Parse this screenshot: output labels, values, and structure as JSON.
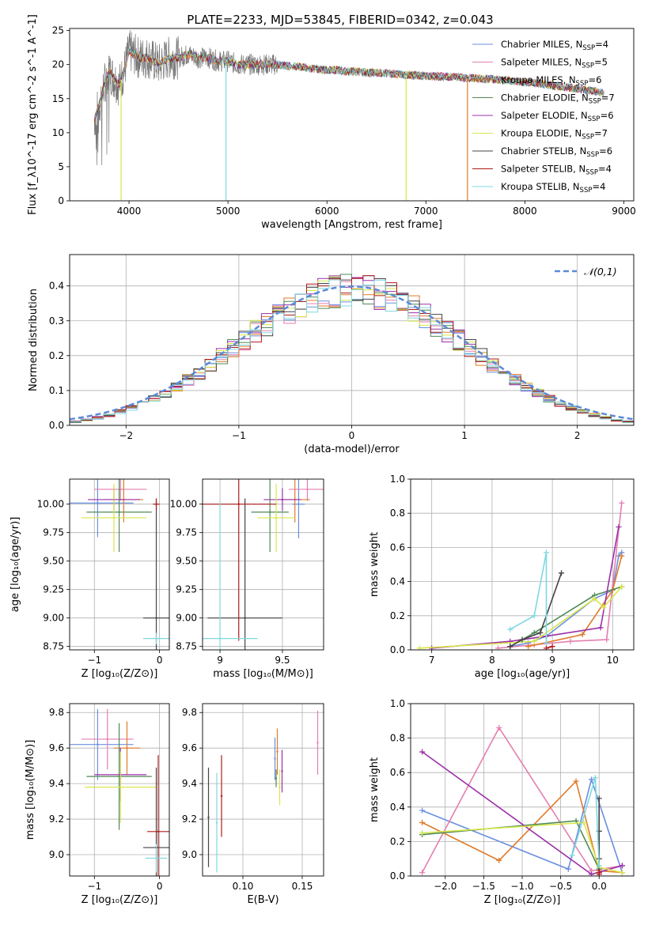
{
  "figure_title": "PLATE=2233, MJD=53845, FIBERID=0342, z=0.043",
  "series_colors": [
    "#6b8fe0",
    "#e37fb0",
    "#e07b2a",
    "#4f8a57",
    "#9b30a8",
    "#d9e64a",
    "#444444",
    "#b01a1a",
    "#7fd8e0"
  ],
  "series_names": [
    "Chabrier MILES",
    "Salpeter MILES",
    "Kroupa MILES",
    "Chabrier ELODIE",
    "Salpeter ELODIE",
    "Kroupa ELODIE",
    "Chabrier STELIB",
    "Salpeter STELIB",
    "Kroupa STELIB"
  ],
  "nssp": [
    "4",
    "5",
    "6",
    "7",
    "6",
    "7",
    "6",
    "4",
    "4"
  ],
  "chart_data": [
    {
      "id": "spectrum",
      "type": "line",
      "xlabel": "wavelength [Angstrom, rest frame]",
      "ylabel": "Flux [f_λ10^-17 erg cm^-2 s^-1 A^-1]",
      "xlim": [
        3400,
        9100
      ],
      "ylim": [
        0,
        25.3
      ],
      "xticks": [
        4000,
        5000,
        6000,
        7000,
        8000,
        9000
      ],
      "yticks": [
        0,
        5,
        10,
        15,
        20,
        25
      ],
      "legend_position": "upper right",
      "data_series": {
        "name": "data",
        "color": "#777777"
      },
      "model_points": {
        "x": [
          3650,
          3700,
          3750,
          3800,
          3850,
          3900,
          3950,
          4000,
          4100,
          4200,
          4300,
          4400,
          4500,
          4600,
          4700,
          4800,
          4900,
          5000,
          5100,
          5200,
          5300,
          5400,
          5500,
          5600,
          5700,
          5800,
          5900,
          6000,
          6100,
          6200,
          6300,
          6400,
          6500,
          6600,
          6700,
          6800,
          6900,
          7000,
          7100,
          7200,
          7300,
          7400,
          7500,
          7600,
          7700,
          7800,
          7900,
          8000,
          8100,
          8200,
          8300,
          8400,
          8500,
          8600,
          8700,
          8800
        ],
        "y": [
          12,
          14,
          17,
          19,
          18,
          17,
          19,
          22,
          21,
          21,
          20,
          21,
          21,
          21.5,
          21,
          21,
          20.5,
          20.5,
          20,
          20,
          20,
          20,
          20,
          19.8,
          19.7,
          19.5,
          19.3,
          19.2,
          19.2,
          19,
          19,
          18.8,
          18.8,
          18.7,
          18.6,
          18.5,
          18.4,
          18.3,
          18.3,
          18.2,
          18.2,
          18.0,
          18.0,
          17.9,
          17.8,
          17.7,
          17.6,
          17.4,
          17.3,
          17.1,
          16.9,
          16.7,
          16.5,
          16.3,
          16.1,
          15.8
        ]
      },
      "dropouts": [
        {
          "x": 3920,
          "series": 5
        },
        {
          "x": 4980,
          "series": 8
        },
        {
          "x": 6800,
          "series": 5
        },
        {
          "x": 7420,
          "series": 2
        }
      ]
    },
    {
      "id": "residual-histogram",
      "type": "line",
      "xlabel": "(data-model)/error",
      "ylabel": "Normed distribution",
      "xlim": [
        -2.5,
        2.5
      ],
      "ylim": [
        0,
        0.49
      ],
      "xticks": [
        -2,
        -1,
        0,
        1,
        2
      ],
      "yticks": [
        0.0,
        0.1,
        0.2,
        0.3,
        0.4
      ],
      "legend": "𝒩(0,1)",
      "legend_position": "upper right",
      "normal_curve": {
        "mu": 0,
        "sigma": 1,
        "color": "#5b8bd6"
      },
      "bin_width": 0.1
    },
    {
      "id": "age-vs-Z",
      "type": "scatter",
      "xlabel": "Z [log₁₀(Z/Z⊙)]",
      "ylabel": "age  [log₁₀(age/yr)]",
      "xlim": [
        -1.38,
        0.15
      ],
      "ylim": [
        8.72,
        10.22
      ],
      "xticks": [
        -1,
        0
      ],
      "yticks": [
        8.75,
        9.0,
        9.25,
        9.5,
        9.75,
        10.0
      ],
      "points": [
        {
          "s": 0,
          "x": -0.95,
          "y": 10.01,
          "xe": 0.55,
          "ye": 0.3
        },
        {
          "s": 1,
          "x": -0.6,
          "y": 10.13,
          "xe": 0.4,
          "ye": 0.1
        },
        {
          "s": 2,
          "x": -0.55,
          "y": 10.04,
          "xe": 0.3,
          "ye": 0.2
        },
        {
          "s": 3,
          "x": -0.62,
          "y": 9.93,
          "xe": 0.5,
          "ye": 0.35
        },
        {
          "s": 4,
          "x": -0.7,
          "y": 10.04,
          "xe": 0.4,
          "ye": 0.1
        },
        {
          "s": 5,
          "x": -0.7,
          "y": 9.88,
          "xe": 0.5,
          "ye": 0.3
        },
        {
          "s": 6,
          "x": -0.05,
          "y": 9.0,
          "xe": 0.2,
          "ye": 1.05
        },
        {
          "s": 7,
          "x": -0.05,
          "y": 10.0,
          "xe": 0.05,
          "ye": 0.05
        },
        {
          "s": 8,
          "x": -0.05,
          "y": 8.82,
          "xe": 0.2,
          "ye": 0.05
        }
      ]
    },
    {
      "id": "age-vs-mass",
      "type": "scatter",
      "xlabel": "mass [log₁₀(M/M⊙)]",
      "ylabel": "",
      "xlim": [
        8.86,
        9.83
      ],
      "ylim": [
        8.72,
        10.22
      ],
      "xticks": [
        9.0,
        9.5
      ],
      "yticks": [
        8.75,
        9.0,
        9.25,
        9.5,
        9.75,
        10.0
      ],
      "points": [
        {
          "s": 0,
          "x": 9.63,
          "y": 10.0,
          "xe": 0.05,
          "ye": 0.3
        },
        {
          "s": 1,
          "x": 9.7,
          "y": 10.13,
          "xe": 0.15,
          "ye": 0.1
        },
        {
          "s": 2,
          "x": 9.6,
          "y": 10.04,
          "xe": 0.12,
          "ye": 0.2
        },
        {
          "s": 3,
          "x": 9.4,
          "y": 9.93,
          "xe": 0.15,
          "ye": 0.35
        },
        {
          "s": 4,
          "x": 9.5,
          "y": 10.04,
          "xe": 0.15,
          "ye": 0.1
        },
        {
          "s": 5,
          "x": 9.45,
          "y": 9.88,
          "xe": 0.15,
          "ye": 0.3
        },
        {
          "s": 6,
          "x": 9.2,
          "y": 9.0,
          "xe": 0.3,
          "ye": 1.05
        },
        {
          "s": 7,
          "x": 9.15,
          "y": 10.0,
          "xe": 0.3,
          "ye": 1.2
        },
        {
          "s": 8,
          "x": 9.0,
          "y": 8.82,
          "xe": 0.3,
          "ye": 1.2
        }
      ]
    },
    {
      "id": "massweight-vs-age",
      "type": "line",
      "xlabel": "age  [log₁₀(age/yr)]",
      "ylabel": "mass weight",
      "xlim": [
        6.65,
        10.35
      ],
      "ylim": [
        0,
        1.0
      ],
      "xticks": [
        7,
        8,
        9,
        10
      ],
      "yticks": [
        0.0,
        0.2,
        0.4,
        0.6,
        0.8,
        1.0
      ],
      "series": [
        {
          "s": 0,
          "x": [
            8.3,
            8.6,
            8.9,
            9.7,
            10.0,
            10.1,
            10.15
          ],
          "y": [
            0.02,
            0.04,
            0.08,
            0.3,
            0.35,
            0.55,
            0.57
          ]
        },
        {
          "s": 1,
          "x": [
            8.1,
            8.7,
            9.3,
            9.9,
            10.15
          ],
          "y": [
            0.01,
            0.03,
            0.05,
            0.06,
            0.86
          ]
        },
        {
          "s": 2,
          "x": [
            8.6,
            9.5,
            10.0,
            10.15
          ],
          "y": [
            0.02,
            0.09,
            0.35,
            0.55
          ]
        },
        {
          "s": 3,
          "x": [
            8.3,
            8.7,
            9.7,
            10.15
          ],
          "y": [
            0.02,
            0.1,
            0.32,
            0.37
          ]
        },
        {
          "s": 4,
          "x": [
            7.0,
            8.3,
            8.9,
            9.8,
            10.1
          ],
          "y": [
            0.01,
            0.05,
            0.08,
            0.13,
            0.72
          ]
        },
        {
          "s": 5,
          "x": [
            6.8,
            8.7,
            9.7,
            9.85,
            10.15
          ],
          "y": [
            0.01,
            0.05,
            0.3,
            0.25,
            0.37
          ]
        },
        {
          "s": 6,
          "x": [
            8.3,
            8.5,
            8.8,
            9.15
          ],
          "y": [
            0.02,
            0.06,
            0.1,
            0.45
          ]
        },
        {
          "s": 7,
          "x": [
            8.9,
            9.0
          ],
          "y": [
            0.01,
            0.02
          ]
        },
        {
          "s": 8,
          "x": [
            8.3,
            8.7,
            8.9,
            8.9
          ],
          "y": [
            0.12,
            0.2,
            0.57,
            0.04
          ]
        }
      ]
    },
    {
      "id": "mass-vs-Z",
      "type": "scatter",
      "xlabel": "Z [log₁₀(Z/Z⊙)]",
      "ylabel": "mass [log₁₀(M/M⊙)]",
      "xlim": [
        -1.38,
        0.15
      ],
      "ylim": [
        8.88,
        9.85
      ],
      "xticks": [
        -1,
        0
      ],
      "yticks": [
        9.0,
        9.2,
        9.4,
        9.6,
        9.8
      ],
      "points": [
        {
          "s": 0,
          "x": -0.95,
          "y": 9.62,
          "xe": 0.55,
          "ye": 0.2
        },
        {
          "s": 1,
          "x": -0.8,
          "y": 9.65,
          "xe": 0.4,
          "ye": 0.17
        },
        {
          "s": 2,
          "x": -0.5,
          "y": 9.6,
          "xe": 0.2,
          "ye": 0.15
        },
        {
          "s": 3,
          "x": -0.62,
          "y": 9.44,
          "xe": 0.5,
          "ye": 0.3
        },
        {
          "s": 4,
          "x": -0.6,
          "y": 9.45,
          "xe": 0.4,
          "ye": 0.15
        },
        {
          "s": 5,
          "x": -0.6,
          "y": 9.38,
          "xe": 0.55,
          "ye": 0.2
        },
        {
          "s": 6,
          "x": -0.05,
          "y": 9.04,
          "xe": 0.2,
          "ye": 0.45
        },
        {
          "s": 7,
          "x": -0.02,
          "y": 9.13,
          "xe": 0.17,
          "ye": 0.43
        },
        {
          "s": 8,
          "x": -0.05,
          "y": 8.98,
          "xe": 0.17,
          "ye": 0.08
        }
      ]
    },
    {
      "id": "mass-vs-EBV",
      "type": "scatter",
      "xlabel": "E(B-V)",
      "ylabel": "",
      "xlim": [
        0.066,
        0.168
      ],
      "ylim": [
        8.88,
        9.85
      ],
      "xticks": [
        0.1,
        0.15
      ],
      "yticks": [
        9.0,
        9.2,
        9.4,
        9.6,
        9.8
      ],
      "points": [
        {
          "s": 0,
          "x": 0.127,
          "y": 9.54,
          "ye": 0.12
        },
        {
          "s": 1,
          "x": 0.163,
          "y": 9.63,
          "ye": 0.18
        },
        {
          "s": 2,
          "x": 0.129,
          "y": 9.58,
          "ye": 0.13
        },
        {
          "s": 3,
          "x": 0.128,
          "y": 9.43,
          "ye": 0.05
        },
        {
          "s": 4,
          "x": 0.133,
          "y": 9.47,
          "ye": 0.12
        },
        {
          "s": 5,
          "x": 0.131,
          "y": 9.38,
          "ye": 0.1
        },
        {
          "s": 6,
          "x": 0.071,
          "y": 9.21,
          "ye": 0.28
        },
        {
          "s": 7,
          "x": 0.082,
          "y": 9.33,
          "ye": 0.23
        },
        {
          "s": 8,
          "x": 0.078,
          "y": 9.18,
          "ye": 0.28
        }
      ]
    },
    {
      "id": "massweight-vs-Z",
      "type": "line",
      "xlabel": "Z [log₁₀(Z/Z⊙)]",
      "ylabel": "mass weight",
      "xlim": [
        -2.45,
        0.45
      ],
      "ylim": [
        0,
        1.0
      ],
      "xticks": [
        -2.0,
        -1.5,
        -1.0,
        -0.5,
        0.0
      ],
      "yticks": [
        0.0,
        0.2,
        0.4,
        0.6,
        0.8,
        1.0
      ],
      "series": [
        {
          "s": 0,
          "x": [
            -2.3,
            -0.4,
            -0.1,
            0.3
          ],
          "y": [
            0.38,
            0.04,
            0.56,
            0.02
          ]
        },
        {
          "s": 1,
          "x": [
            -2.3,
            -1.3,
            -0.1,
            0.3
          ],
          "y": [
            0.02,
            0.86,
            0.03,
            0.06
          ]
        },
        {
          "s": 2,
          "x": [
            -2.3,
            -1.3,
            -0.3,
            0.0,
            0.3
          ],
          "y": [
            0.31,
            0.09,
            0.55,
            0.03,
            0.02
          ]
        },
        {
          "s": 3,
          "x": [
            -2.3,
            -0.3,
            0.0
          ],
          "y": [
            0.24,
            0.32,
            0.04
          ]
        },
        {
          "s": 4,
          "x": [
            -2.3,
            -0.1,
            0.3
          ],
          "y": [
            0.72,
            0.01,
            0.06
          ]
        },
        {
          "s": 5,
          "x": [
            -2.3,
            -0.2,
            0.0,
            0.3
          ],
          "y": [
            0.25,
            0.31,
            0.05,
            0.02
          ]
        },
        {
          "s": 6,
          "x": [
            0.0,
            0.0,
            0.0,
            0.0
          ],
          "y": [
            0.45,
            0.26,
            0.1,
            0.02
          ]
        },
        {
          "s": 7,
          "x": [
            0.0,
            0.0
          ],
          "y": [
            0.01,
            0.02
          ]
        },
        {
          "s": 8,
          "x": [
            -0.35,
            -0.05,
            0.0
          ],
          "y": [
            0.12,
            0.57,
            0.06
          ]
        }
      ]
    }
  ]
}
